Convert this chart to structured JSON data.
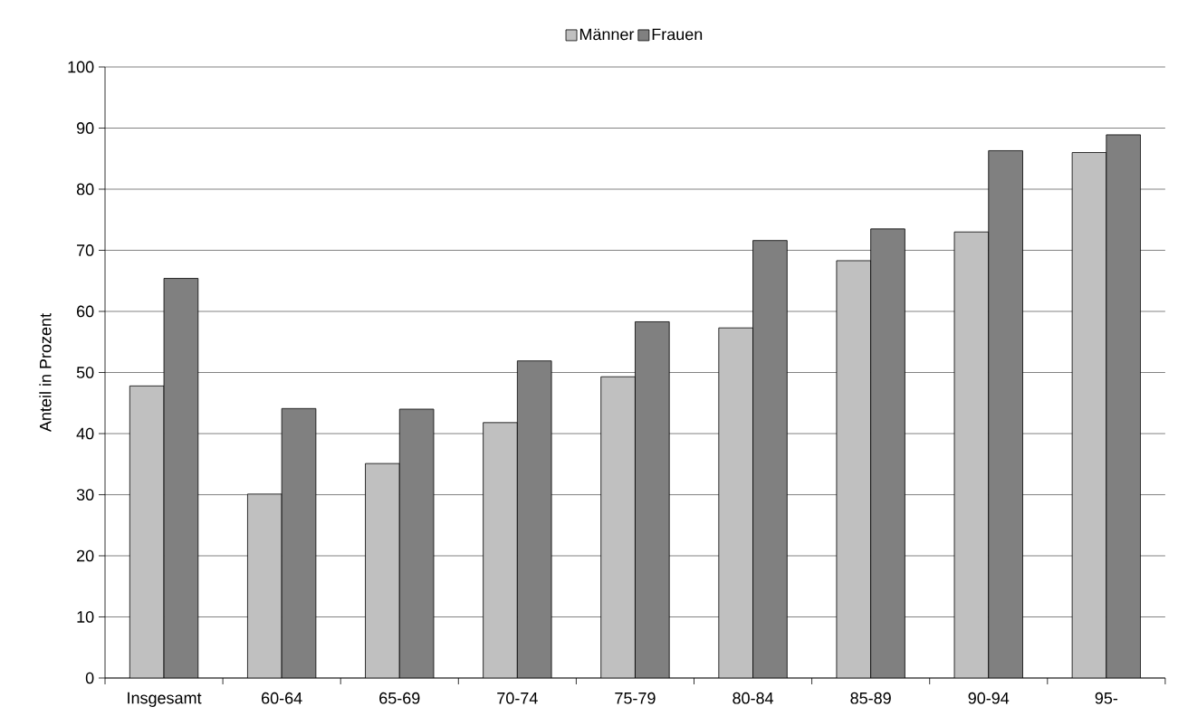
{
  "chart_data": {
    "type": "bar",
    "ylabel": "Anteil in Prozent",
    "categories": [
      "Insgesamt",
      "60-64",
      "65-69",
      "70-74",
      "75-79",
      "80-84",
      "85-89",
      "90-94",
      "95-"
    ],
    "series": [
      {
        "name": "Männer",
        "color": "#c0c0c0",
        "values": [
          47.8,
          30.1,
          35.1,
          41.8,
          49.3,
          57.3,
          68.3,
          73.0,
          86.0
        ]
      },
      {
        "name": "Frauen",
        "color": "#808080",
        "values": [
          65.4,
          44.1,
          44.0,
          51.9,
          58.3,
          71.6,
          73.5,
          86.3,
          88.9
        ]
      }
    ],
    "ylim": [
      0,
      100
    ],
    "yticks": [
      0,
      10,
      20,
      30,
      40,
      50,
      60,
      70,
      80,
      90,
      100
    ],
    "grid": "y",
    "legend": "top"
  }
}
